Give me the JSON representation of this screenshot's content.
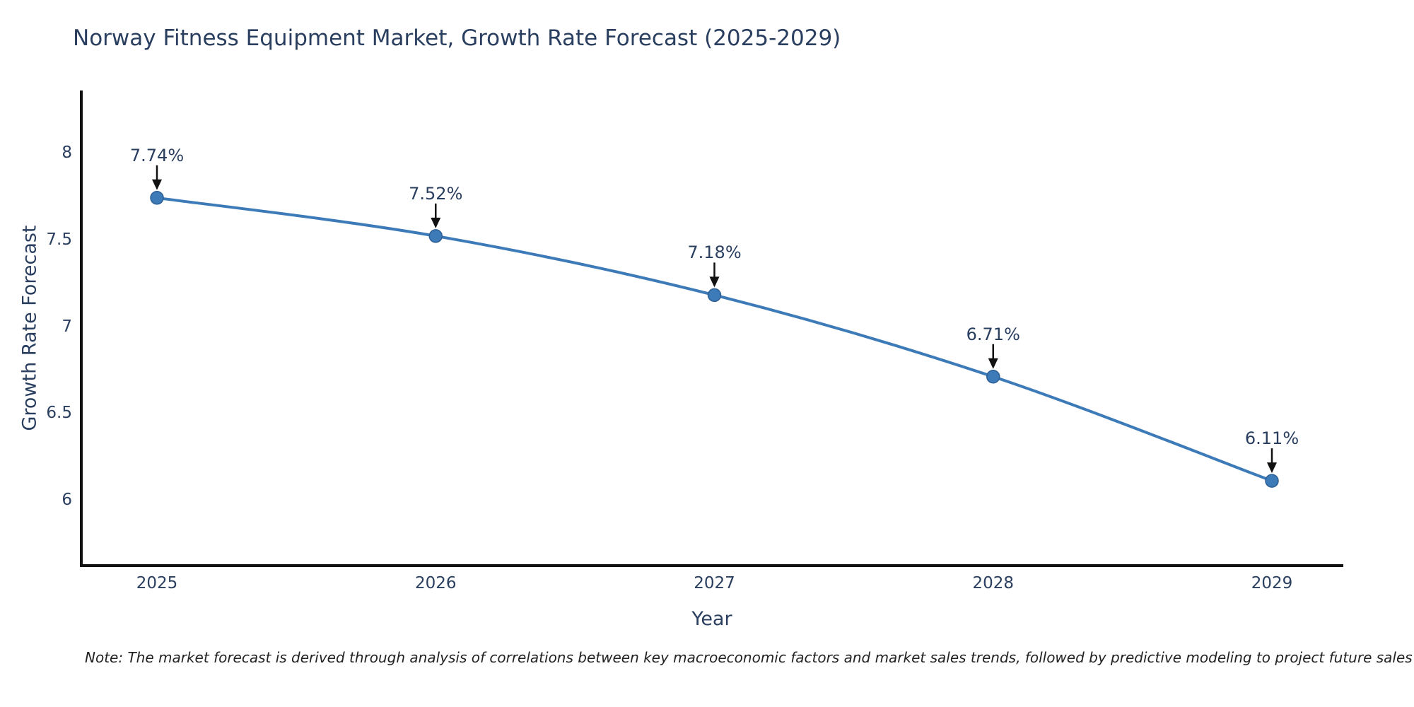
{
  "figure": {
    "title": "Norway Fitness Equipment Market, Growth Rate Forecast (2025-2029)",
    "note": "Note: The market forecast is derived through analysis of correlations between key macroeconomic factors and market sales trends, followed by predictive modeling to project future sales"
  },
  "chart_data": {
    "type": "line",
    "title": "Norway Fitness Equipment Market, Growth Rate Forecast (2025-2029)",
    "xlabel": "Year",
    "ylabel": "Growth Rate Forecast",
    "categories": [
      "2025",
      "2026",
      "2027",
      "2028",
      "2029"
    ],
    "values": [
      7.74,
      7.52,
      7.18,
      6.71,
      6.11
    ],
    "point_labels": [
      "7.74%",
      "7.52%",
      "7.18%",
      "6.71%",
      "6.11%"
    ],
    "ytick_labels": [
      "8",
      "7.5",
      "7",
      "6.5",
      "6"
    ],
    "ytick_values": [
      8,
      7.5,
      7,
      6.5,
      6
    ],
    "ylim": [
      5.63,
      8.35
    ],
    "grid": false,
    "legend": false,
    "marker_style": "circle",
    "annotation_arrows": true,
    "colors": {
      "line": "#3d7ab8",
      "marker": "#3d7ab8",
      "marker_edge": "#2d5f94",
      "arrow": "#111111",
      "text": "#2a3f5f",
      "axis": "#111111",
      "note_text": "#222222",
      "background": "#ffffff"
    }
  }
}
